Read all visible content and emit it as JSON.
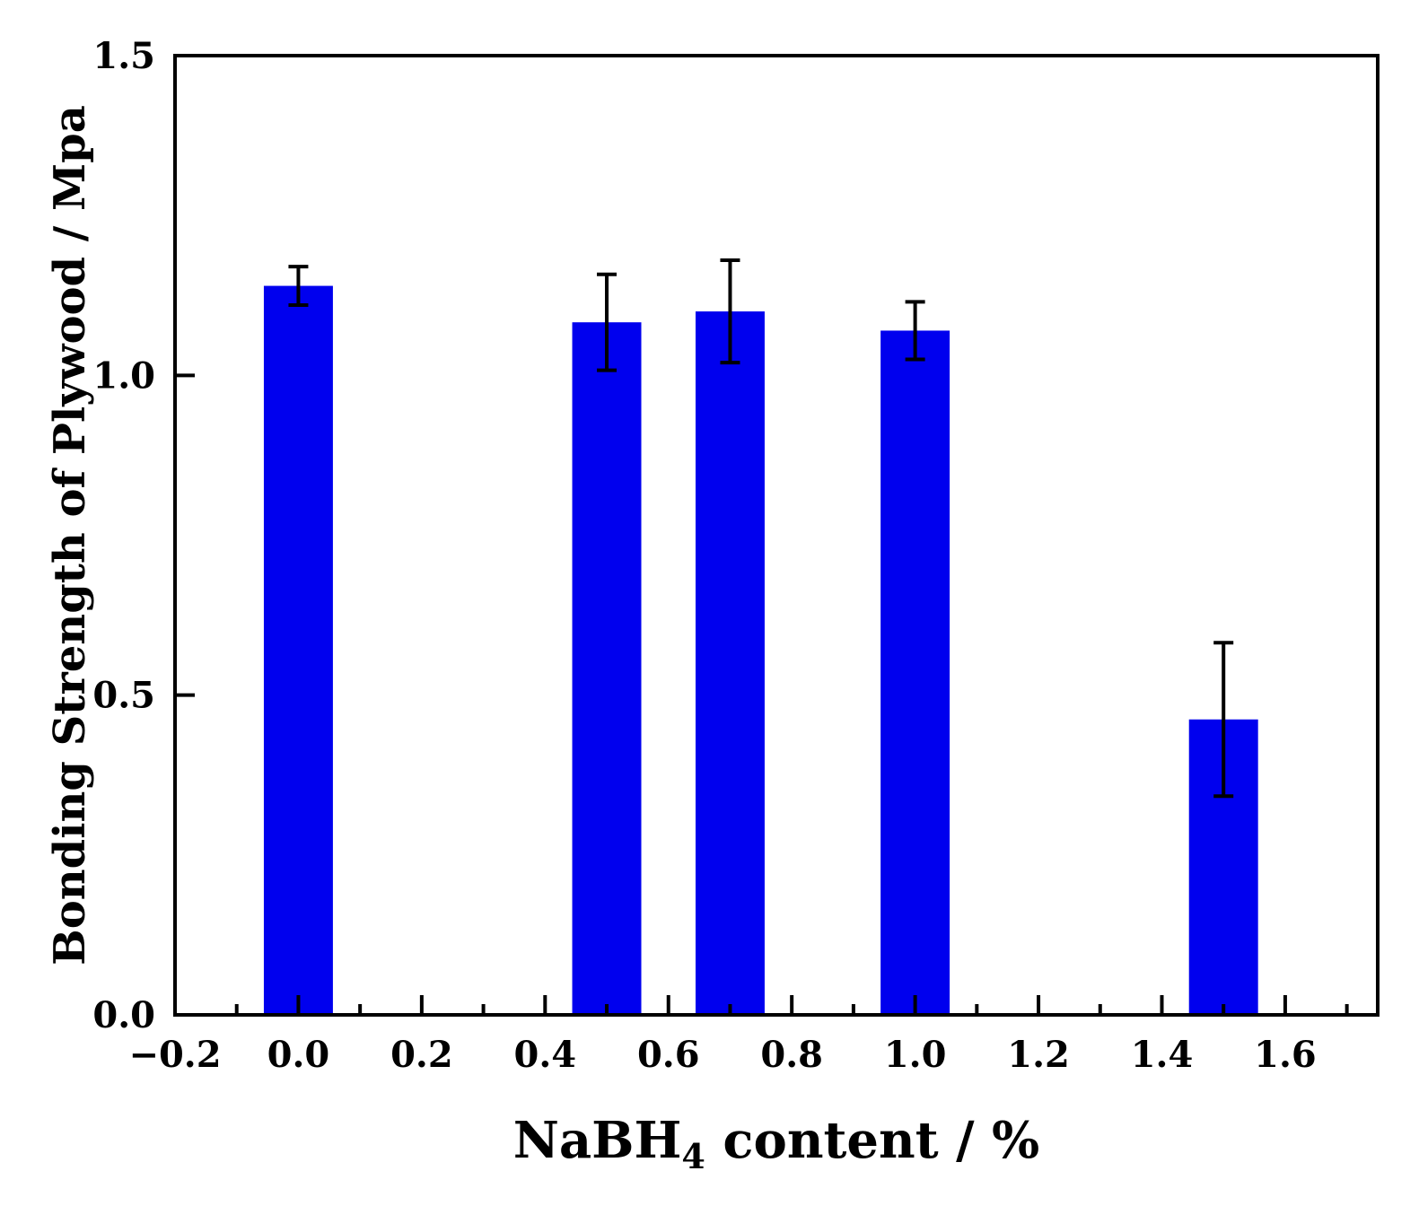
{
  "chart_data": {
    "type": "bar",
    "x": [
      0.0,
      0.5,
      0.7,
      1.0,
      1.5
    ],
    "values": [
      1.14,
      1.083,
      1.1,
      1.07,
      0.462
    ],
    "errors": [
      0.03,
      0.075,
      0.08,
      0.045,
      0.12
    ],
    "bar_color": "#0000ee",
    "error_color": "#000000",
    "xlim": [
      -0.2,
      1.75
    ],
    "ylim": [
      0.0,
      1.5
    ],
    "x_ticks": [
      -0.2,
      0.0,
      0.2,
      0.4,
      0.6,
      0.8,
      1.0,
      1.2,
      1.4,
      1.6
    ],
    "x_tick_labels": [
      "−0.2",
      "0.0",
      "0.2",
      "0.4",
      "0.6",
      "0.8",
      "1.0",
      "1.2",
      "1.4",
      "1.6"
    ],
    "y_ticks": [
      0.0,
      0.5,
      1.0,
      1.5
    ],
    "y_tick_labels": [
      "0.0",
      "0.5",
      "1.0",
      "1.5"
    ],
    "xlabel": {
      "main": "NaBH",
      "sub": "4",
      "rest": " content / %"
    },
    "ylabel": "Bonding Strength of Plywood / Mpa",
    "bar_width": 0.112
  }
}
